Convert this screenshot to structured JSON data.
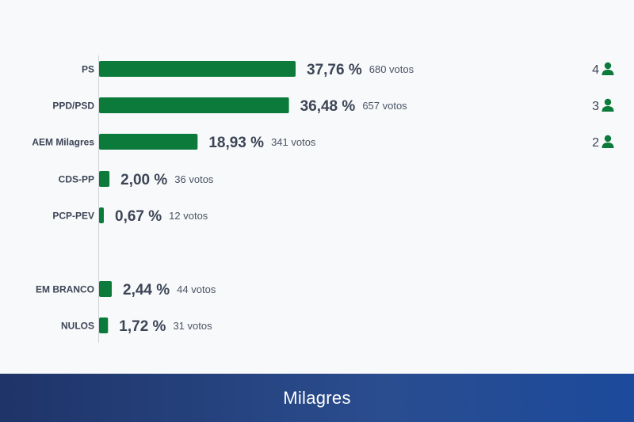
{
  "chart_data": {
    "type": "bar",
    "orientation": "horizontal",
    "categories": [
      "PS",
      "PPD/PSD",
      "AEM Milagres",
      "CDS-PP",
      "PCP-PEV",
      "EM BRANCO",
      "NULOS"
    ],
    "values": [
      37.76,
      36.48,
      18.93,
      2.0,
      0.67,
      2.44,
      1.72
    ],
    "value_labels": [
      "37,76 %",
      "36,48 %",
      "18,93 %",
      "2,00 %",
      "0,67 %",
      "2,44 %",
      "1,72 %"
    ],
    "votes": [
      680,
      657,
      341,
      36,
      12,
      44,
      31
    ],
    "vote_labels": [
      "680 votos",
      "657 votos",
      "341 votos",
      "36 votos",
      "12 votos",
      "44 votos",
      "31 votos"
    ],
    "seats": [
      4,
      3,
      2,
      null,
      null,
      null,
      null
    ],
    "seat_labels": [
      "4",
      "3",
      "2",
      "",
      "",
      "",
      ""
    ],
    "bar_color": "#0b7a3b",
    "title": "Milagres",
    "xlim": [
      0,
      40
    ]
  },
  "footer": {
    "title": "Milagres"
  },
  "colors": {
    "bar": "#0b7a3b",
    "seat_icon": "#0b7a3b",
    "text": "#3c4556",
    "footer_start": "#1f3468",
    "footer_end": "#1c4a9c"
  },
  "icons": {
    "seat": "person-icon"
  }
}
